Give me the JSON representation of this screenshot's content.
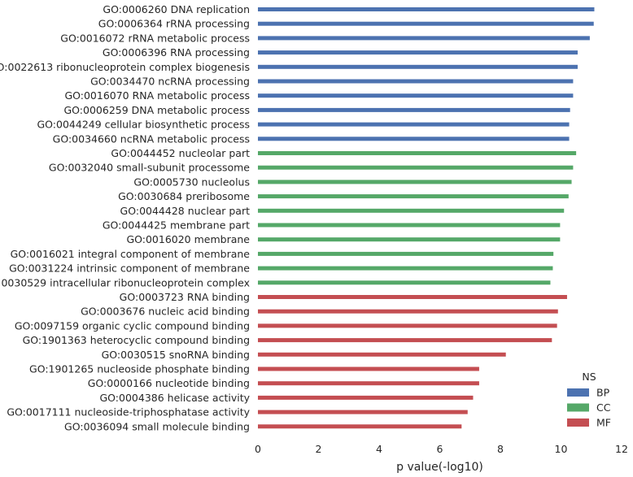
{
  "chart_data": {
    "type": "bar",
    "orientation": "horizontal",
    "xlabel": "p value(-log10)",
    "ylabel": "",
    "xlim": [
      0,
      12
    ],
    "xticks": [
      "0",
      "2",
      "4",
      "6",
      "8",
      "10",
      "12"
    ],
    "grid": false,
    "legend_title": "NS",
    "legend_position": "bottom-right",
    "series": [
      {
        "name": "BP",
        "color": "#4c72b0"
      },
      {
        "name": "CC",
        "color": "#55a868"
      },
      {
        "name": "MF",
        "color": "#c44e52"
      }
    ],
    "bars": [
      {
        "label": "GO:0006260 DNA replication",
        "value": 11.1,
        "ns": "BP"
      },
      {
        "label": "GO:0006364 rRNA processing",
        "value": 11.08,
        "ns": "BP"
      },
      {
        "label": "GO:0016072 rRNA metabolic process",
        "value": 10.95,
        "ns": "BP"
      },
      {
        "label": "GO:0006396 RNA processing",
        "value": 10.55,
        "ns": "BP"
      },
      {
        "label": "GO:0022613 ribonucleoprotein complex biogenesis",
        "value": 10.55,
        "ns": "BP"
      },
      {
        "label": "GO:0034470 ncRNA processing",
        "value": 10.4,
        "ns": "BP"
      },
      {
        "label": "GO:0016070 RNA metabolic process",
        "value": 10.4,
        "ns": "BP"
      },
      {
        "label": "GO:0006259 DNA metabolic process",
        "value": 10.3,
        "ns": "BP"
      },
      {
        "label": "GO:0044249 cellular biosynthetic process",
        "value": 10.27,
        "ns": "BP"
      },
      {
        "label": "GO:0034660 ncRNA metabolic process",
        "value": 10.27,
        "ns": "BP"
      },
      {
        "label": "GO:0044452 nucleolar part",
        "value": 10.5,
        "ns": "CC"
      },
      {
        "label": "GO:0032040 small-subunit processome",
        "value": 10.4,
        "ns": "CC"
      },
      {
        "label": "GO:0005730 nucleolus",
        "value": 10.35,
        "ns": "CC"
      },
      {
        "label": "GO:0030684 preribosome",
        "value": 10.25,
        "ns": "CC"
      },
      {
        "label": "GO:0044428 nuclear part",
        "value": 10.1,
        "ns": "CC"
      },
      {
        "label": "GO:0044425 membrane part",
        "value": 9.97,
        "ns": "CC"
      },
      {
        "label": "GO:0016020 membrane",
        "value": 9.97,
        "ns": "CC"
      },
      {
        "label": "GO:0016021 integral component of membrane",
        "value": 9.75,
        "ns": "CC"
      },
      {
        "label": "GO:0031224 intrinsic component of membrane",
        "value": 9.73,
        "ns": "CC"
      },
      {
        "label": "GO:0030529 intracellular ribonucleoprotein complex",
        "value": 9.65,
        "ns": "CC"
      },
      {
        "label": "GO:0003723 RNA binding",
        "value": 10.2,
        "ns": "MF"
      },
      {
        "label": "GO:0003676 nucleic acid binding",
        "value": 9.9,
        "ns": "MF"
      },
      {
        "label": "GO:0097159 organic cyclic compound binding",
        "value": 9.87,
        "ns": "MF"
      },
      {
        "label": "GO:1901363 heterocyclic compound binding",
        "value": 9.7,
        "ns": "MF"
      },
      {
        "label": "GO:0030515 snoRNA binding",
        "value": 8.18,
        "ns": "MF"
      },
      {
        "label": "GO:1901265 nucleoside phosphate binding",
        "value": 7.3,
        "ns": "MF"
      },
      {
        "label": "GO:0000166 nucleotide binding",
        "value": 7.3,
        "ns": "MF"
      },
      {
        "label": "GO:0004386 helicase activity",
        "value": 7.1,
        "ns": "MF"
      },
      {
        "label": "GO:0017111 nucleoside-triphosphatase activity",
        "value": 6.92,
        "ns": "MF"
      },
      {
        "label": "GO:0036094 small molecule binding",
        "value": 6.72,
        "ns": "MF"
      }
    ]
  }
}
